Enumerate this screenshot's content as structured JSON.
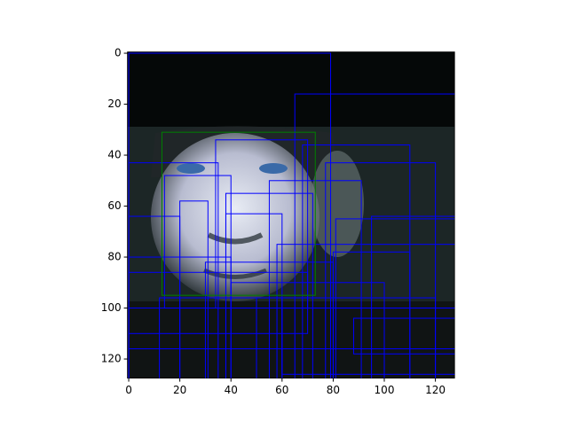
{
  "chart_data": {
    "type": "image",
    "xlim": [
      -0.5,
      127.5
    ],
    "ylim": [
      127.5,
      -0.5
    ],
    "xticks": [
      0,
      20,
      40,
      60,
      80,
      100,
      120
    ],
    "yticks": [
      0,
      20,
      40,
      60,
      80,
      100,
      120
    ],
    "highlight": {
      "color": "#008000",
      "values": [
        13,
        31,
        73,
        95
      ]
    },
    "boxes": {
      "color": "#0000ff",
      "values": [
        [
          0,
          0,
          79,
          128
        ],
        [
          65,
          16,
          128,
          128
        ],
        [
          34,
          34,
          70,
          100
        ],
        [
          0,
          43,
          35,
          128
        ],
        [
          77,
          43,
          120,
          128
        ],
        [
          68,
          36,
          110,
          128
        ],
        [
          14,
          48,
          40,
          100
        ],
        [
          55,
          50,
          91,
          128
        ],
        [
          38,
          55,
          72,
          128
        ],
        [
          20,
          58,
          31,
          128
        ],
        [
          0,
          64,
          20,
          128
        ],
        [
          95,
          64,
          128,
          128
        ],
        [
          38,
          63,
          60,
          128
        ],
        [
          81,
          65,
          128,
          128
        ],
        [
          58,
          75,
          128,
          128
        ],
        [
          80,
          78,
          110,
          128
        ],
        [
          0,
          80,
          40,
          128
        ],
        [
          30,
          82,
          80,
          128
        ],
        [
          12,
          96,
          60,
          128
        ],
        [
          0,
          100,
          128,
          116
        ],
        [
          40,
          90,
          100,
          128
        ],
        [
          88,
          104,
          128,
          118
        ],
        [
          50,
          96,
          120,
          128
        ],
        [
          0,
          86,
          70,
          110
        ],
        [
          60,
          100,
          128,
          126
        ]
      ]
    }
  }
}
